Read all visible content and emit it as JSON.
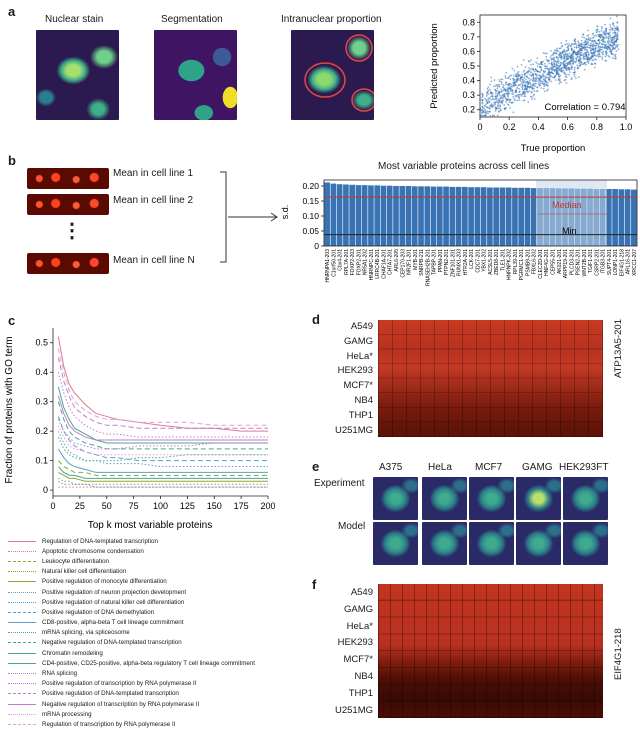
{
  "panel_letters": {
    "a": "a",
    "b": "b",
    "c": "c",
    "d": "d",
    "e": "e",
    "f": "f"
  },
  "panel_a": {
    "titles": [
      "Nuclear stain",
      "Segmentation",
      "Intranuclear proportion"
    ],
    "scatter": {
      "ylabel": "Predicted proportion",
      "xlabel": "True proportion",
      "annotation": "Correlation = 0.794",
      "xticks": [
        "0",
        "0.2",
        "0.4",
        "0.6",
        "0.8",
        "1.0"
      ],
      "yticks": [
        "0.2",
        "0.3",
        "0.4",
        "0.5",
        "0.6",
        "0.7",
        "0.8"
      ]
    }
  },
  "panel_b": {
    "strip_labels": [
      "Mean in cell line 1",
      "Mean in cell line 2",
      "Mean in cell line N"
    ],
    "dots": "⋮",
    "chart_title": "Most variable proteins across cell lines",
    "ylabel": "s.d.",
    "yticks": [
      "0",
      "0.05",
      "0.10",
      "0.15",
      "0.20"
    ],
    "median_label": "Median",
    "min_label": "Min"
  },
  "panel_c": {
    "ylabel": "Fraction of proteins with GO term",
    "xlabel": "Top k most variable proteins",
    "xticks": [
      "0",
      "25",
      "50",
      "75",
      "100",
      "125",
      "150",
      "175",
      "200"
    ],
    "yticks": [
      "0",
      "0.1",
      "0.2",
      "0.3",
      "0.4",
      "0.5"
    ],
    "legend": [
      {
        "label": "Regulation of DNA-templated transcription",
        "color": "#e07a8a",
        "style": "solid"
      },
      {
        "label": "Apoptotic chromosome condensation",
        "color": "#e07a8a",
        "style": "dotted"
      },
      {
        "label": "Leukocyte differentiation",
        "color": "#8aa63a",
        "style": "dashed"
      },
      {
        "label": "Natural killer cell differentiation",
        "color": "#8aa63a",
        "style": "dotted"
      },
      {
        "label": "Positive regulation of monocyte differentiation",
        "color": "#8aa63a",
        "style": "solid"
      },
      {
        "label": "Positive regulation of neuron projection development",
        "color": "#5a9ec9",
        "style": "dotted"
      },
      {
        "label": "Positive regulation of natural killer cell differentiation",
        "color": "#5a9ec9",
        "style": "dotted"
      },
      {
        "label": "Positive regulation of DNA demethylation",
        "color": "#5a9ec9",
        "style": "dashed"
      },
      {
        "label": "CD8-positive, alpha-beta T cell lineage commitment",
        "color": "#5a9ec9",
        "style": "solid"
      },
      {
        "label": "mRNA splicing, via spliceosome",
        "color": "#4aa88a",
        "style": "dotted"
      },
      {
        "label": "Negative regulation of DNA-templated transcription",
        "color": "#4aa88a",
        "style": "dashed"
      },
      {
        "label": "Chromatin remodeling",
        "color": "#4aa88a",
        "style": "solid"
      },
      {
        "label": "CD4-positive, CD25-positive, alpha-beta regulatory T cell lineage commitment",
        "color": "#4aa88a",
        "style": "solid"
      },
      {
        "label": "RNA splicing",
        "color": "#c07ad0",
        "style": "dotted"
      },
      {
        "label": "Positive regulation of transcription by RNA polymerase II",
        "color": "#c07ad0",
        "style": "dotted"
      },
      {
        "label": "Positive regulation of DNA-templated transcription",
        "color": "#c07ad0",
        "style": "dashed"
      },
      {
        "label": "Negative regulation of transcription by RNA polymerase II",
        "color": "#c07ad0",
        "style": "solid"
      },
      {
        "label": "mRNA processing",
        "color": "#e0a0d8",
        "style": "dotted"
      },
      {
        "label": "Regulation of transcription by RNA polymerase II",
        "color": "#e0a0d8",
        "style": "dashed"
      }
    ]
  },
  "panel_d": {
    "rows": [
      "A549",
      "GAMG",
      "HeLa*",
      "HEK293",
      "MCF7*",
      "NB4",
      "THP1",
      "U251MG"
    ],
    "side_label": "ATP13A5-201"
  },
  "panel_e": {
    "columns": [
      "A375",
      "HeLa",
      "MCF7",
      "GAMG",
      "HEK293FT"
    ],
    "rows": [
      "Experiment",
      "Model"
    ]
  },
  "panel_f": {
    "rows": [
      "A549",
      "GAMG",
      "HeLa*",
      "HEK293",
      "MCF7*",
      "NB4",
      "THP1",
      "U251MG"
    ],
    "side_label": "EIF4G1-218"
  },
  "chart_data": [
    {
      "type": "scatter",
      "xlabel": "True proportion",
      "ylabel": "Predicted proportion",
      "xlim": [
        0,
        1.0
      ],
      "ylim": [
        0.15,
        0.85
      ],
      "annotation": "Correlation = 0.794",
      "trend": {
        "x": [
          0,
          0.2,
          0.4,
          0.6,
          0.8,
          1.0
        ],
        "y": [
          0.22,
          0.33,
          0.44,
          0.54,
          0.64,
          0.72
        ]
      }
    },
    {
      "type": "bar",
      "title": "Most variable proteins across cell lines",
      "ylabel": "s.d.",
      "ylim": [
        0,
        0.22
      ],
      "categories": [
        "HNRNPA1-203",
        "C1orf50-201",
        "Cbx4-201",
        "RPL7A-201",
        "FOXP2-203",
        "FOXP2-201",
        "NR5A1-202",
        "HNRNPC-201",
        "LRRC4B-201",
        "CHAF1A-201",
        "CHTA7-201",
        "ARL6-205",
        "CEP170-203",
        "NR2F1-201",
        "MYB-201",
        "SNRPB-211",
        "RNASEH2B-201",
        "TAPBP-201",
        "PPAN-201",
        "PTPN2-201",
        "ZNF101-201",
        "RUNX1-203",
        "HTR2A-201",
        "LCK-201",
        "CDC7-201",
        "YBX1-202",
        "ACSL5-201",
        "ZBED8-201",
        "TLE1-201",
        "HNRNPK-202",
        "RPL39-201",
        "PGRMC1-201",
        "PSMB9-201",
        "FBXL6-202",
        "CLEC2D-201",
        "HNF4G-201",
        "CEP55-201",
        "AK021-201",
        "ARPP19-201",
        "PLCD3-201",
        "PSEN2-201",
        "WNT2B-201",
        "TGIF1-201",
        "CSRP2-201",
        "ITGB3-201",
        "SUPT4-201",
        "LONP1-201",
        "EIF4G1-218",
        "ARL16-201",
        "XRCC1-207"
      ],
      "values": [
        0.212,
        0.208,
        0.206,
        0.205,
        0.204,
        0.203,
        0.203,
        0.202,
        0.202,
        0.201,
        0.201,
        0.2,
        0.2,
        0.2,
        0.199,
        0.199,
        0.199,
        0.198,
        0.198,
        0.198,
        0.197,
        0.197,
        0.197,
        0.196,
        0.196,
        0.196,
        0.195,
        0.195,
        0.195,
        0.195,
        0.194,
        0.194,
        0.194,
        0.193,
        0.193,
        0.193,
        0.193,
        0.192,
        0.192,
        0.192,
        0.191,
        0.191,
        0.191,
        0.19,
        0.19,
        0.19,
        0.19,
        0.189,
        0.189,
        0.188
      ],
      "reference_lines": [
        {
          "label": "Median",
          "y": 0.163
        },
        {
          "label": "Min",
          "y": 0.038
        }
      ]
    },
    {
      "type": "line",
      "xlabel": "Top k most variable proteins",
      "ylabel": "Fraction of proteins with GO term",
      "xlim": [
        0,
        200
      ],
      "ylim": [
        -0.02,
        0.55
      ],
      "x": [
        5,
        10,
        15,
        20,
        30,
        40,
        50,
        60,
        80,
        100,
        125,
        150,
        175,
        200
      ],
      "series": [
        {
          "name": "Regulation of DNA-templated transcription",
          "values": [
            0.52,
            0.42,
            0.36,
            0.33,
            0.29,
            0.26,
            0.25,
            0.24,
            0.23,
            0.22,
            0.21,
            0.21,
            0.2,
            0.2
          ]
        },
        {
          "name": "Apoptotic chromosome condensation",
          "values": [
            0.01,
            0.01,
            0.01,
            0.01,
            0.01,
            0.01,
            0.01,
            0.01,
            0.01,
            0.01,
            0.01,
            0.01,
            0.01,
            0.01
          ]
        },
        {
          "name": "Leukocyte differentiation",
          "values": [
            0.1,
            0.08,
            0.07,
            0.06,
            0.06,
            0.05,
            0.05,
            0.05,
            0.05,
            0.05,
            0.05,
            0.05,
            0.05,
            0.05
          ]
        },
        {
          "name": "Natural killer cell differentiation",
          "values": [
            0.04,
            0.03,
            0.03,
            0.02,
            0.02,
            0.02,
            0.02,
            0.02,
            0.02,
            0.02,
            0.02,
            0.02,
            0.02,
            0.02
          ]
        },
        {
          "name": "Positive regulation of monocyte differentiation",
          "values": [
            0.06,
            0.05,
            0.04,
            0.04,
            0.03,
            0.03,
            0.03,
            0.03,
            0.03,
            0.03,
            0.03,
            0.03,
            0.03,
            0.03
          ]
        },
        {
          "name": "Positive regulation of neuron projection development",
          "values": [
            0.2,
            0.16,
            0.13,
            0.12,
            0.1,
            0.1,
            0.09,
            0.09,
            0.09,
            0.08,
            0.08,
            0.08,
            0.08,
            0.08
          ]
        },
        {
          "name": "Positive regulation of natural killer cell differentiation",
          "values": [
            0.03,
            0.02,
            0.02,
            0.02,
            0.02,
            0.01,
            0.01,
            0.01,
            0.01,
            0.01,
            0.01,
            0.01,
            0.01,
            0.01
          ]
        },
        {
          "name": "Positive regulation of DNA demethylation",
          "values": [
            0.25,
            0.2,
            0.17,
            0.15,
            0.13,
            0.12,
            0.11,
            0.11,
            0.1,
            0.1,
            0.1,
            0.1,
            0.1,
            0.1
          ]
        },
        {
          "name": "CD8-positive, alpha-beta T cell lineage commitment",
          "values": [
            0.14,
            0.11,
            0.09,
            0.08,
            0.07,
            0.06,
            0.06,
            0.06,
            0.06,
            0.06,
            0.06,
            0.06,
            0.06,
            0.06
          ]
        },
        {
          "name": "mRNA splicing, via spliceosome",
          "values": [
            0.18,
            0.14,
            0.12,
            0.11,
            0.1,
            0.1,
            0.1,
            0.1,
            0.11,
            0.11,
            0.12,
            0.12,
            0.12,
            0.12
          ]
        },
        {
          "name": "Negative regulation of DNA-templated transcription",
          "values": [
            0.3,
            0.24,
            0.2,
            0.18,
            0.16,
            0.15,
            0.14,
            0.14,
            0.14,
            0.14,
            0.14,
            0.14,
            0.14,
            0.14
          ]
        },
        {
          "name": "Chromatin remodeling",
          "values": [
            0.35,
            0.28,
            0.24,
            0.21,
            0.19,
            0.17,
            0.16,
            0.16,
            0.16,
            0.16,
            0.16,
            0.16,
            0.16,
            0.16
          ]
        },
        {
          "name": "CD4-positive, CD25-positive, alpha-beta regulatory T cell lineage commitment",
          "values": [
            0.08,
            0.06,
            0.05,
            0.05,
            0.04,
            0.04,
            0.04,
            0.04,
            0.04,
            0.04,
            0.04,
            0.04,
            0.04,
            0.04
          ]
        },
        {
          "name": "RNA splicing",
          "values": [
            0.24,
            0.2,
            0.18,
            0.16,
            0.15,
            0.14,
            0.14,
            0.14,
            0.15,
            0.15,
            0.15,
            0.16,
            0.16,
            0.16
          ]
        },
        {
          "name": "Positive regulation of transcription by RNA polymerase II",
          "values": [
            0.4,
            0.33,
            0.28,
            0.25,
            0.22,
            0.2,
            0.19,
            0.19,
            0.18,
            0.18,
            0.18,
            0.18,
            0.18,
            0.18
          ]
        },
        {
          "name": "Positive regulation of DNA-templated transcription",
          "values": [
            0.45,
            0.37,
            0.32,
            0.28,
            0.25,
            0.23,
            0.22,
            0.22,
            0.21,
            0.21,
            0.21,
            0.21,
            0.21,
            0.21
          ]
        },
        {
          "name": "Negative regulation of transcription by RNA polymerase II",
          "values": [
            0.32,
            0.26,
            0.22,
            0.2,
            0.18,
            0.17,
            0.17,
            0.17,
            0.17,
            0.17,
            0.17,
            0.17,
            0.17,
            0.17
          ]
        },
        {
          "name": "mRNA processing",
          "values": [
            0.22,
            0.18,
            0.15,
            0.14,
            0.13,
            0.12,
            0.12,
            0.12,
            0.12,
            0.12,
            0.12,
            0.12,
            0.12,
            0.12
          ]
        },
        {
          "name": "Regulation of transcription by RNA polymerase II",
          "values": [
            0.48,
            0.4,
            0.34,
            0.3,
            0.27,
            0.25,
            0.24,
            0.24,
            0.23,
            0.23,
            0.23,
            0.22,
            0.22,
            0.22
          ]
        }
      ]
    }
  ]
}
